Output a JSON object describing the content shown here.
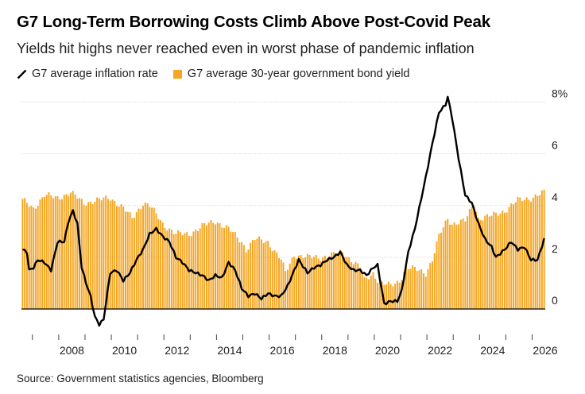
{
  "title": "G7 Long-Term Borrowing Costs Climb Above Post-Covid Peak",
  "subtitle": "Yields hit highs never reached even in worst phase of pandemic inflation",
  "legend": {
    "inflation_label": "G7 average inflation rate",
    "yield_label": "G7 average 30-year government bond yield"
  },
  "source": "Source: Government statistics agencies, Bloomberg",
  "colors": {
    "bar": "#f5a623",
    "line": "#000000",
    "grid": "#d6d6d6",
    "axis": "#000000"
  },
  "chart_data": {
    "type": "bar+line",
    "ylim": [
      -0.8,
      8.2
    ],
    "y_ticks": [
      {
        "value": 8,
        "label": "8%"
      },
      {
        "value": 6,
        "label": "6"
      },
      {
        "value": 4,
        "label": "4"
      },
      {
        "value": 2,
        "label": "2"
      },
      {
        "value": 0,
        "label": "0"
      }
    ],
    "x_ticks": [
      "2008",
      "2010",
      "2012",
      "2014",
      "2016",
      "2018",
      "2020",
      "2022",
      "2024",
      "2026"
    ],
    "x_range": [
      "2006-08",
      "2026-06"
    ],
    "series": [
      {
        "name": "G7 average 30-year government bond yield",
        "kind": "bar",
        "frequency": "monthly",
        "anchors": [
          [
            "2006-08",
            4.2
          ],
          [
            "2007-01",
            3.9
          ],
          [
            "2007-06",
            4.4
          ],
          [
            "2007-12",
            4.3
          ],
          [
            "2008-06",
            4.5
          ],
          [
            "2008-12",
            4.1
          ],
          [
            "2009-06",
            4.2
          ],
          [
            "2009-12",
            4.3
          ],
          [
            "2010-06",
            3.9
          ],
          [
            "2010-10",
            3.5
          ],
          [
            "2011-03",
            4.1
          ],
          [
            "2011-06",
            4.0
          ],
          [
            "2011-12",
            3.3
          ],
          [
            "2012-06",
            2.9
          ],
          [
            "2012-12",
            2.9
          ],
          [
            "2013-06",
            3.2
          ],
          [
            "2013-12",
            3.4
          ],
          [
            "2014-06",
            3.1
          ],
          [
            "2014-12",
            2.6
          ],
          [
            "2015-02",
            2.3
          ],
          [
            "2015-06",
            2.7
          ],
          [
            "2015-12",
            2.6
          ],
          [
            "2016-06",
            1.9
          ],
          [
            "2016-08",
            1.4
          ],
          [
            "2016-12",
            2.1
          ],
          [
            "2017-06",
            2.0
          ],
          [
            "2017-12",
            2.0
          ],
          [
            "2018-06",
            2.1
          ],
          [
            "2018-10",
            2.2
          ],
          [
            "2019-06",
            1.6
          ],
          [
            "2019-08",
            1.1
          ],
          [
            "2019-12",
            1.4
          ],
          [
            "2020-03",
            1.0
          ],
          [
            "2020-08",
            0.9
          ],
          [
            "2020-12",
            1.1
          ],
          [
            "2021-03",
            1.6
          ],
          [
            "2021-09",
            1.5
          ],
          [
            "2021-12",
            1.4
          ],
          [
            "2022-03",
            1.9
          ],
          [
            "2022-06",
            2.8
          ],
          [
            "2022-10",
            3.5
          ],
          [
            "2022-12",
            3.3
          ],
          [
            "2023-06",
            3.4
          ],
          [
            "2023-10",
            4.1
          ],
          [
            "2023-12",
            3.5
          ],
          [
            "2024-06",
            3.6
          ],
          [
            "2024-12",
            3.8
          ],
          [
            "2025-06",
            4.2
          ],
          [
            "2025-12",
            4.3
          ],
          [
            "2026-06",
            4.5
          ]
        ]
      },
      {
        "name": "G7 average inflation rate",
        "kind": "line",
        "frequency": "monthly",
        "anchors": [
          [
            "2006-08",
            2.3
          ],
          [
            "2006-10",
            2.2
          ],
          [
            "2006-11",
            1.5
          ],
          [
            "2007-01",
            1.6
          ],
          [
            "2007-03",
            1.9
          ],
          [
            "2007-06",
            1.8
          ],
          [
            "2007-09",
            1.5
          ],
          [
            "2007-12",
            2.6
          ],
          [
            "2008-03",
            2.6
          ],
          [
            "2008-05",
            3.4
          ],
          [
            "2008-07",
            3.8
          ],
          [
            "2008-09",
            3.3
          ],
          [
            "2008-11",
            1.6
          ],
          [
            "2009-01",
            1.0
          ],
          [
            "2009-03",
            0.5
          ],
          [
            "2009-05",
            -0.3
          ],
          [
            "2009-07",
            -0.6
          ],
          [
            "2009-09",
            -0.4
          ],
          [
            "2009-12",
            1.4
          ],
          [
            "2010-03",
            1.5
          ],
          [
            "2010-06",
            1.1
          ],
          [
            "2010-09",
            1.4
          ],
          [
            "2010-12",
            1.9
          ],
          [
            "2011-03",
            2.3
          ],
          [
            "2011-06",
            2.9
          ],
          [
            "2011-09",
            3.1
          ],
          [
            "2011-12",
            2.8
          ],
          [
            "2012-03",
            2.6
          ],
          [
            "2012-06",
            2.0
          ],
          [
            "2012-09",
            1.8
          ],
          [
            "2012-12",
            1.5
          ],
          [
            "2013-06",
            1.3
          ],
          [
            "2013-09",
            1.1
          ],
          [
            "2013-12",
            1.3
          ],
          [
            "2014-03",
            1.2
          ],
          [
            "2014-06",
            1.8
          ],
          [
            "2014-09",
            1.5
          ],
          [
            "2014-12",
            0.8
          ],
          [
            "2015-03",
            0.5
          ],
          [
            "2015-06",
            0.6
          ],
          [
            "2015-09",
            0.4
          ],
          [
            "2015-12",
            0.6
          ],
          [
            "2016-03",
            0.5
          ],
          [
            "2016-06",
            0.5
          ],
          [
            "2016-09",
            0.9
          ],
          [
            "2016-12",
            1.5
          ],
          [
            "2017-02",
            1.9
          ],
          [
            "2017-06",
            1.4
          ],
          [
            "2017-09",
            1.6
          ],
          [
            "2017-12",
            1.7
          ],
          [
            "2018-03",
            1.9
          ],
          [
            "2018-06",
            2.0
          ],
          [
            "2018-09",
            2.2
          ],
          [
            "2018-12",
            1.7
          ],
          [
            "2019-03",
            1.5
          ],
          [
            "2019-06",
            1.5
          ],
          [
            "2019-09",
            1.3
          ],
          [
            "2019-12",
            1.6
          ],
          [
            "2020-02",
            1.7
          ],
          [
            "2020-05",
            0.2
          ],
          [
            "2020-08",
            0.3
          ],
          [
            "2020-11",
            0.3
          ],
          [
            "2021-01",
            0.7
          ],
          [
            "2021-04",
            2.2
          ],
          [
            "2021-07",
            3.1
          ],
          [
            "2021-10",
            4.3
          ],
          [
            "2021-12",
            5.1
          ],
          [
            "2022-03",
            6.4
          ],
          [
            "2022-06",
            7.6
          ],
          [
            "2022-09",
            7.9
          ],
          [
            "2022-10",
            8.2
          ],
          [
            "2022-12",
            7.4
          ],
          [
            "2023-03",
            5.8
          ],
          [
            "2023-06",
            4.4
          ],
          [
            "2023-09",
            4.1
          ],
          [
            "2023-12",
            3.3
          ],
          [
            "2024-03",
            2.7
          ],
          [
            "2024-06",
            2.4
          ],
          [
            "2024-08",
            2.0
          ],
          [
            "2024-12",
            2.3
          ],
          [
            "2025-03",
            2.6
          ],
          [
            "2025-06",
            2.3
          ],
          [
            "2025-09",
            2.4
          ],
          [
            "2025-12",
            1.9
          ],
          [
            "2026-03",
            1.9
          ],
          [
            "2026-06",
            2.7
          ]
        ]
      }
    ]
  }
}
